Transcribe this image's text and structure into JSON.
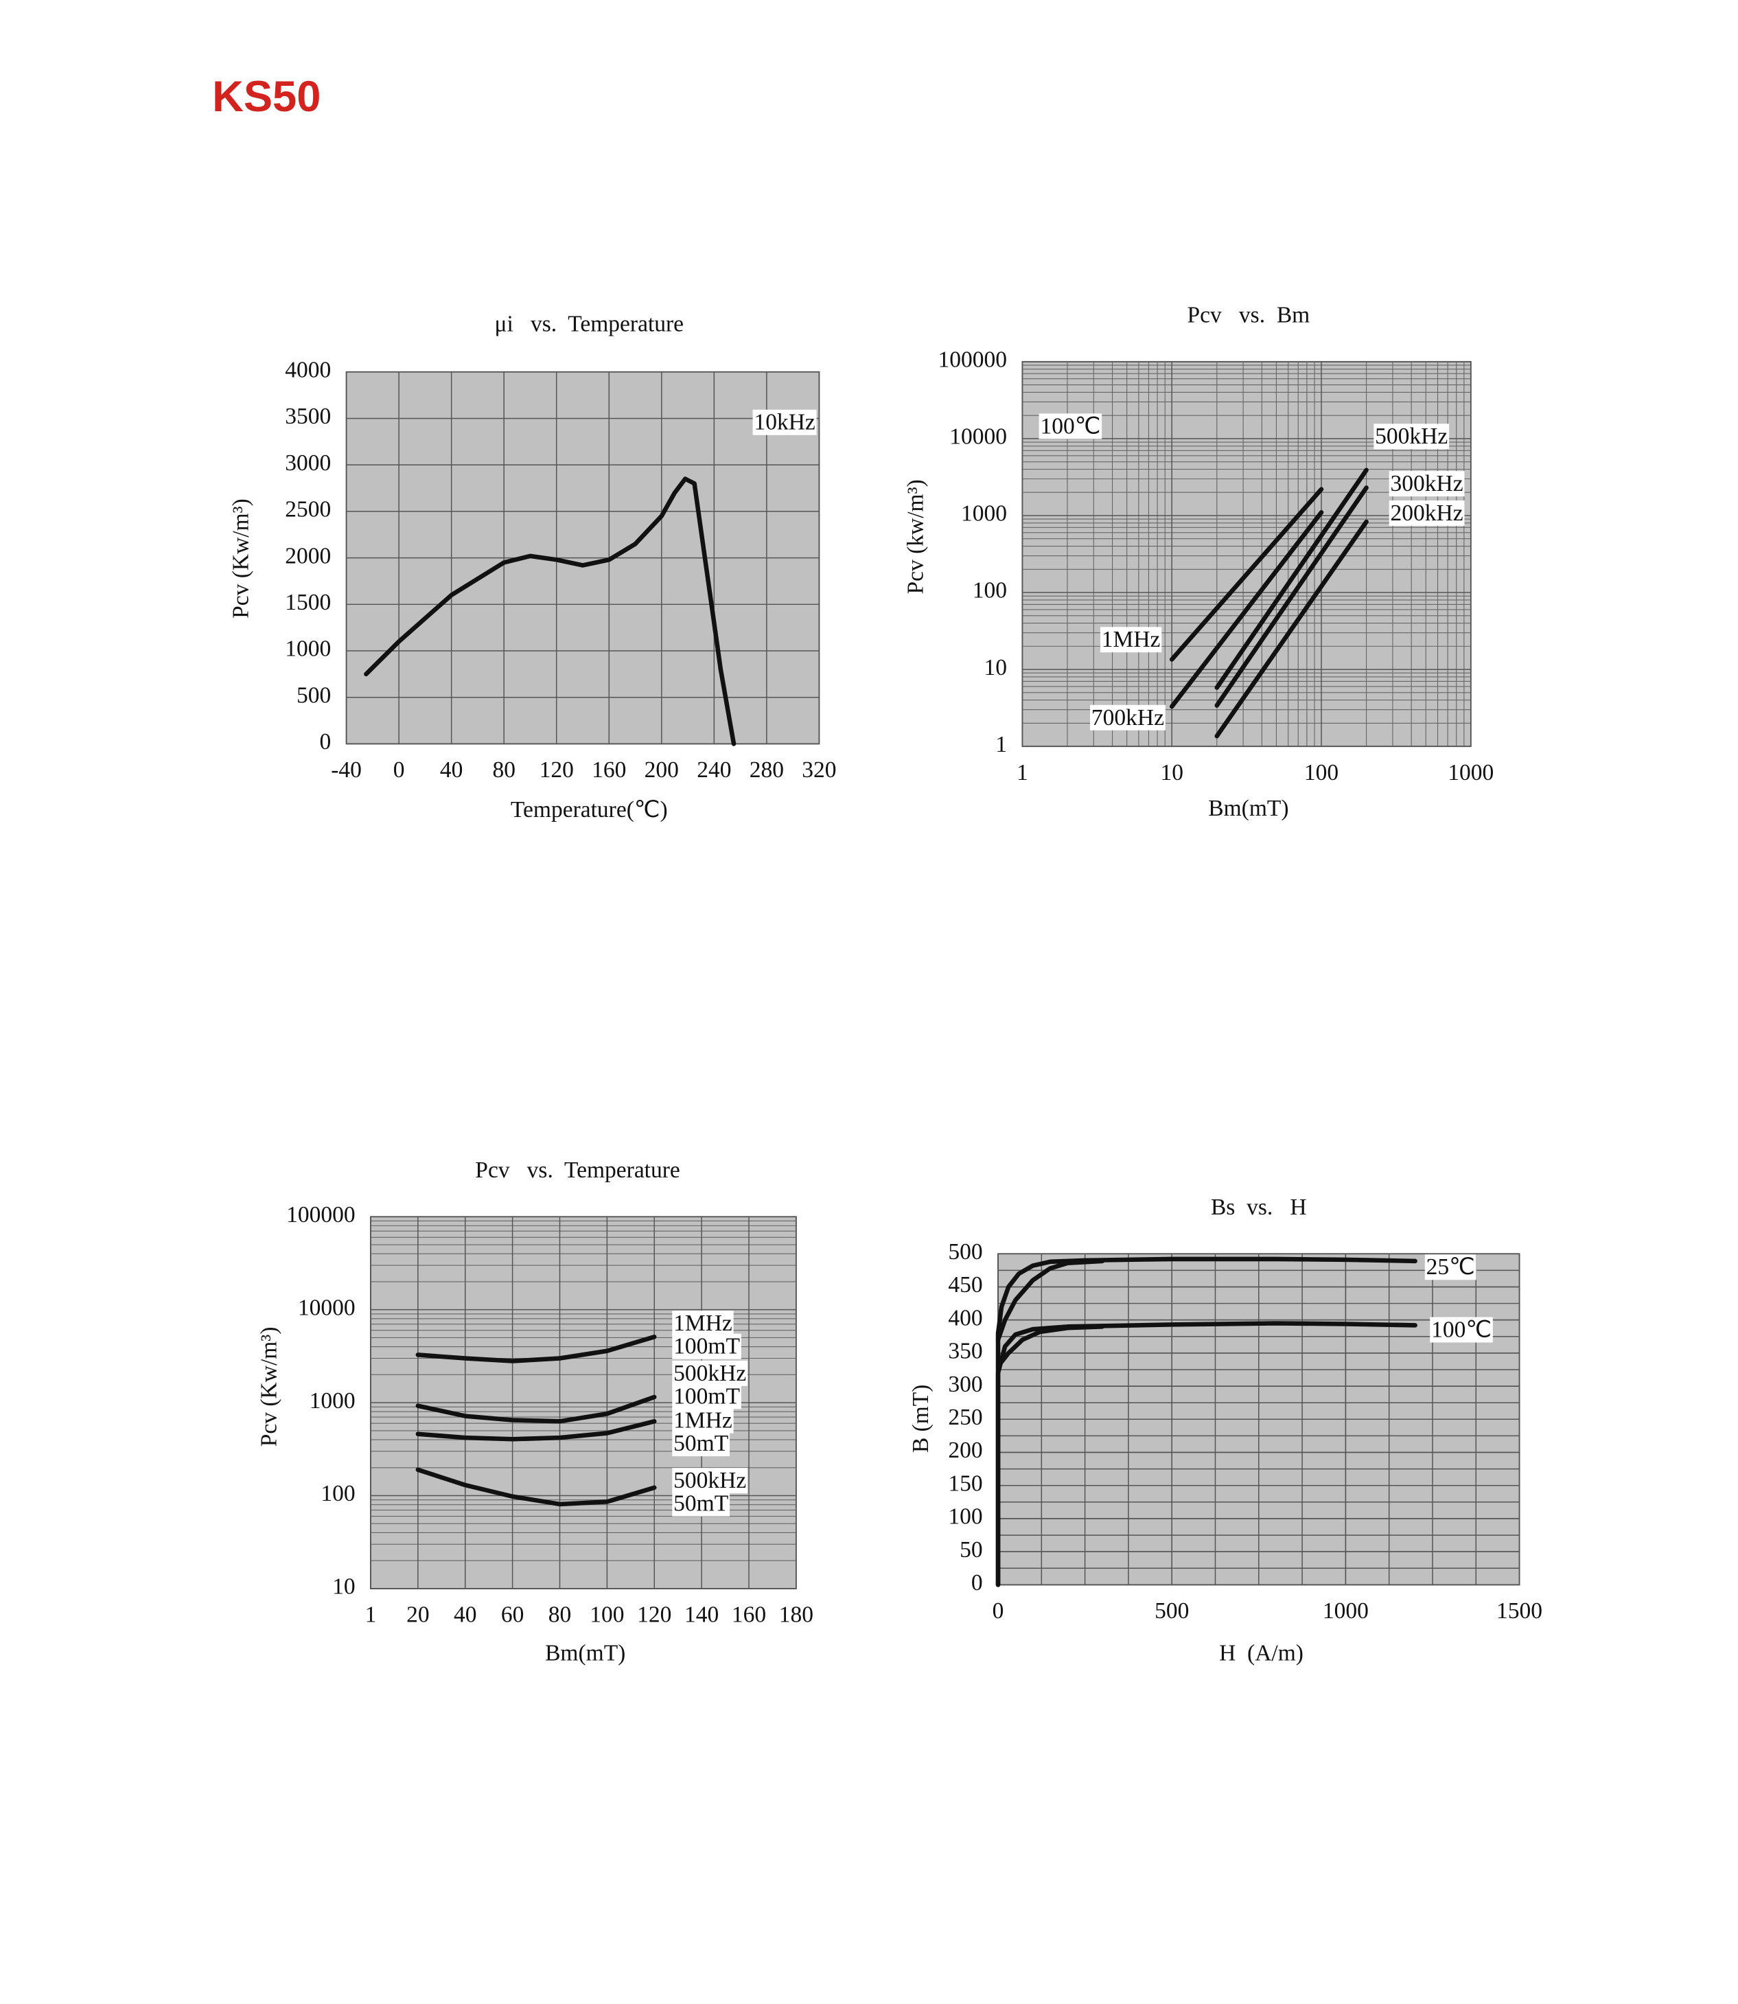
{
  "header": {
    "title": "KS50"
  },
  "chart_data": [
    {
      "type": "line",
      "title": "μi   vs.  Temperature",
      "xlabel": "Temperature(℃)",
      "ylabel": "Pcv (Kw/m³)",
      "xlim": [
        -40,
        320
      ],
      "xticks": [
        -40,
        0,
        40,
        80,
        120,
        160,
        200,
        240,
        280,
        320
      ],
      "ylim": [
        0,
        4000
      ],
      "yticks": [
        0,
        500,
        1000,
        1500,
        2000,
        2500,
        3000,
        3500,
        4000
      ],
      "grid": true,
      "annotations": [
        "10kHz"
      ],
      "series": [
        {
          "color": "#111111",
          "x": [
            -25,
            0,
            40,
            80,
            100,
            120,
            140,
            160,
            180,
            200,
            210,
            218,
            225,
            235,
            245,
            255
          ],
          "values": [
            750,
            1100,
            1600,
            1950,
            2020,
            1980,
            1920,
            1980,
            2150,
            2450,
            2700,
            2850,
            2800,
            1800,
            800,
            0
          ]
        }
      ]
    },
    {
      "type": "line",
      "title": "Pcv   vs.  Bm",
      "xlabel": "Bm(mT)",
      "ylabel": "Pcv (kw/m³)",
      "xlog": true,
      "ylog": true,
      "xlim": [
        1,
        1000
      ],
      "xticks": [
        1,
        10,
        100,
        1000
      ],
      "ylim": [
        1,
        100000
      ],
      "yticks": [
        1,
        10,
        100,
        1000,
        10000,
        100000
      ],
      "grid": true,
      "annotations": [
        "100℃"
      ],
      "series": [
        {
          "name": "1MHz",
          "color": "#111111",
          "x": [
            10,
            100
          ],
          "values": [
            13.5,
            2200
          ]
        },
        {
          "name": "700kHz",
          "color": "#111111",
          "x": [
            10,
            100
          ],
          "values": [
            3.3,
            1100
          ]
        },
        {
          "name": "500kHz",
          "color": "#111111",
          "x": [
            20,
            200
          ],
          "values": [
            5.8,
            3900
          ]
        },
        {
          "name": "300kHz",
          "color": "#111111",
          "x": [
            20,
            200
          ],
          "values": [
            3.4,
            2300
          ]
        },
        {
          "name": "200kHz",
          "color": "#111111",
          "x": [
            20,
            200
          ],
          "values": [
            1.36,
            830
          ]
        }
      ]
    },
    {
      "type": "line",
      "title": "Pcv   vs.  Temperature",
      "xlabel": "Bm(mT)",
      "ylabel": "Pcv (Kw/m³)",
      "ylog": true,
      "categories": [
        "1",
        "20",
        "40",
        "60",
        "80",
        "100",
        "120",
        "140",
        "160",
        "180"
      ],
      "ylim": [
        10,
        100000
      ],
      "yticks": [
        10,
        100,
        1000,
        10000,
        100000
      ],
      "grid": true,
      "series": [
        {
          "name": "1MHz",
          "condition": "100mT",
          "color": "#111111",
          "values": [
            null,
            3270,
            3000,
            2800,
            3000,
            3600,
            5100,
            null,
            null,
            null
          ]
        },
        {
          "name": "500kHz",
          "condition": "100mT",
          "color": "#111111",
          "values": [
            null,
            925,
            718,
            650,
            630,
            760,
            1150,
            null,
            null,
            null
          ]
        },
        {
          "name": "1MHz",
          "condition": "50mT",
          "color": "#111111",
          "values": [
            null,
            460,
            420,
            405,
            420,
            470,
            630,
            null,
            null,
            null
          ]
        },
        {
          "name": "500kHz",
          "condition": "50mT",
          "color": "#111111",
          "values": [
            null,
            190,
            130,
            98,
            81,
            86,
            122,
            null,
            null,
            null
          ]
        }
      ]
    },
    {
      "type": "line",
      "title": "Bs  vs.   H",
      "xlabel": "H  (A/m)",
      "ylabel": "B (mT)",
      "xlim": [
        0,
        1500
      ],
      "xticks": [
        0,
        500,
        1000,
        1500
      ],
      "ylim": [
        0,
        500
      ],
      "yticks": [
        0,
        50,
        100,
        150,
        200,
        250,
        300,
        350,
        400,
        450,
        500
      ],
      "grid": true,
      "series": [
        {
          "name": "25℃",
          "color": "#111111",
          "x": [
            0,
            0,
            10,
            30,
            60,
            100,
            150,
            250,
            500,
            800,
            1000,
            1200
          ],
          "values": [
            0,
            380,
            420,
            450,
            470,
            482,
            488,
            490,
            492,
            492,
            491,
            489
          ]
        },
        {
          "color": "#111111",
          "x": [
            0,
            20,
            50,
            100,
            150,
            200,
            300
          ],
          "values": [
            370,
            400,
            430,
            460,
            478,
            486,
            489
          ]
        },
        {
          "name": "100℃",
          "color": "#111111",
          "x": [
            0,
            0,
            20,
            50,
            100,
            200,
            500,
            800,
            1000,
            1200
          ],
          "values": [
            0,
            320,
            360,
            378,
            386,
            390,
            393,
            395,
            394,
            392
          ]
        },
        {
          "color": "#111111",
          "x": [
            0,
            30,
            70,
            120,
            200,
            300
          ],
          "values": [
            330,
            350,
            370,
            382,
            388,
            390
          ]
        }
      ]
    }
  ]
}
